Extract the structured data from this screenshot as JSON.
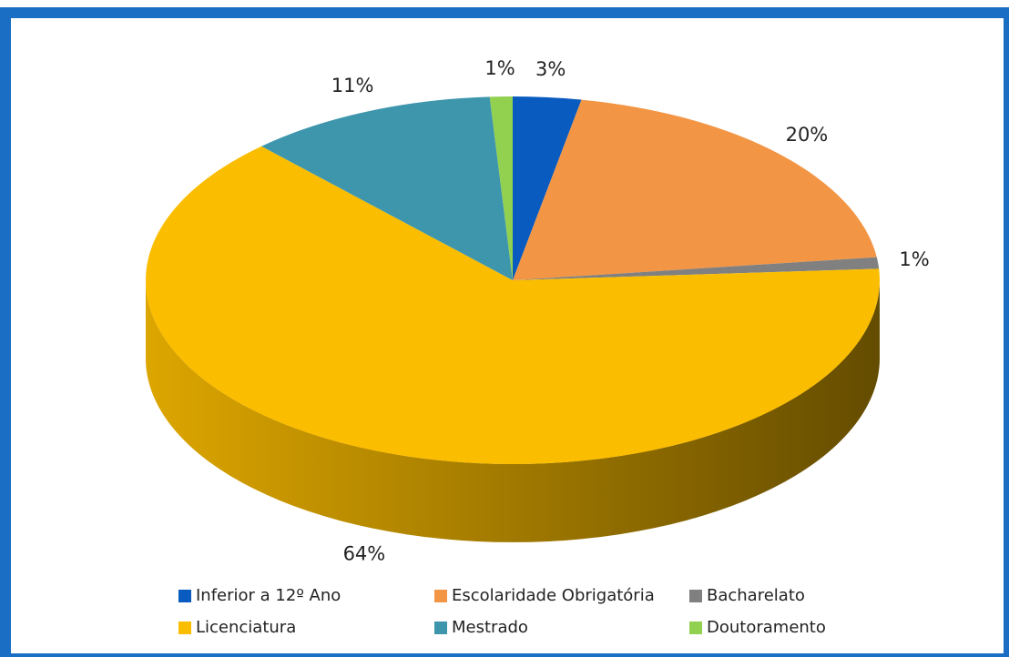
{
  "chart_data": {
    "type": "pie",
    "categories": [
      "Inferior a 12º Ano",
      "Escolaridade Obrigatória",
      "Bacharelato",
      "Licenciatura",
      "Mestrado",
      "Doutoramento"
    ],
    "values": [
      3,
      20,
      1,
      64,
      11,
      1
    ],
    "value_labels": [
      "3%",
      "20%",
      "1%",
      "64%",
      "11%",
      "1%"
    ],
    "colors": [
      "#0a5bbf",
      "#f29545",
      "#808080",
      "#fbbd00",
      "#3e96ad",
      "#92d050"
    ],
    "legend": "bottom"
  }
}
